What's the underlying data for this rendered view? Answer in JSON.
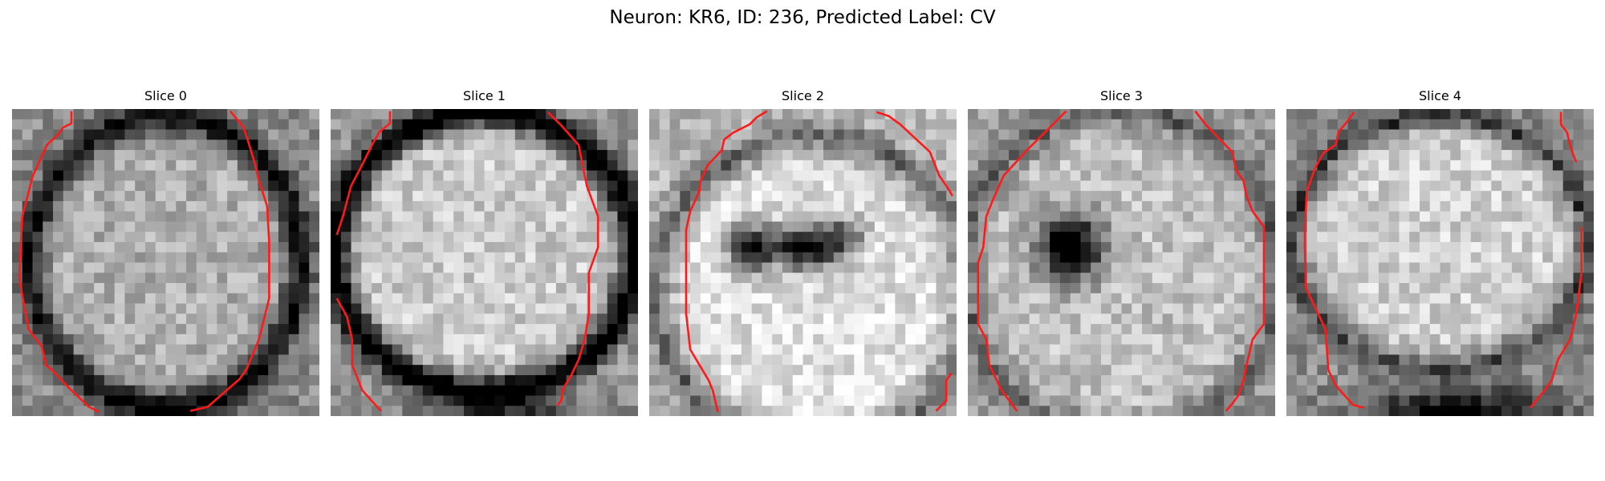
{
  "figure": {
    "suptitle": "Neuron: KR6, ID: 236, Predicted Label: CV"
  },
  "panels": [
    {
      "title": "Slice 0",
      "description": "grayscale microscopy slice of a neuron; dark membrane ring; red boundary contours on left and right"
    },
    {
      "title": "Slice 1",
      "description": "bright cell body with dark ring near bottom; red boundary contours on left and right"
    },
    {
      "title": "Slice 2",
      "description": "bright cell body with dark horizontal band in middle; red boundary contours"
    },
    {
      "title": "Slice 3",
      "description": "gray cell body with dark spot left-center; red boundary contours"
    },
    {
      "title": "Slice 4",
      "description": "bright cell body with dark region at bottom; red boundary contours at edges"
    }
  ],
  "colors": {
    "contour": "#ff1a1a",
    "background": "#ffffff"
  }
}
